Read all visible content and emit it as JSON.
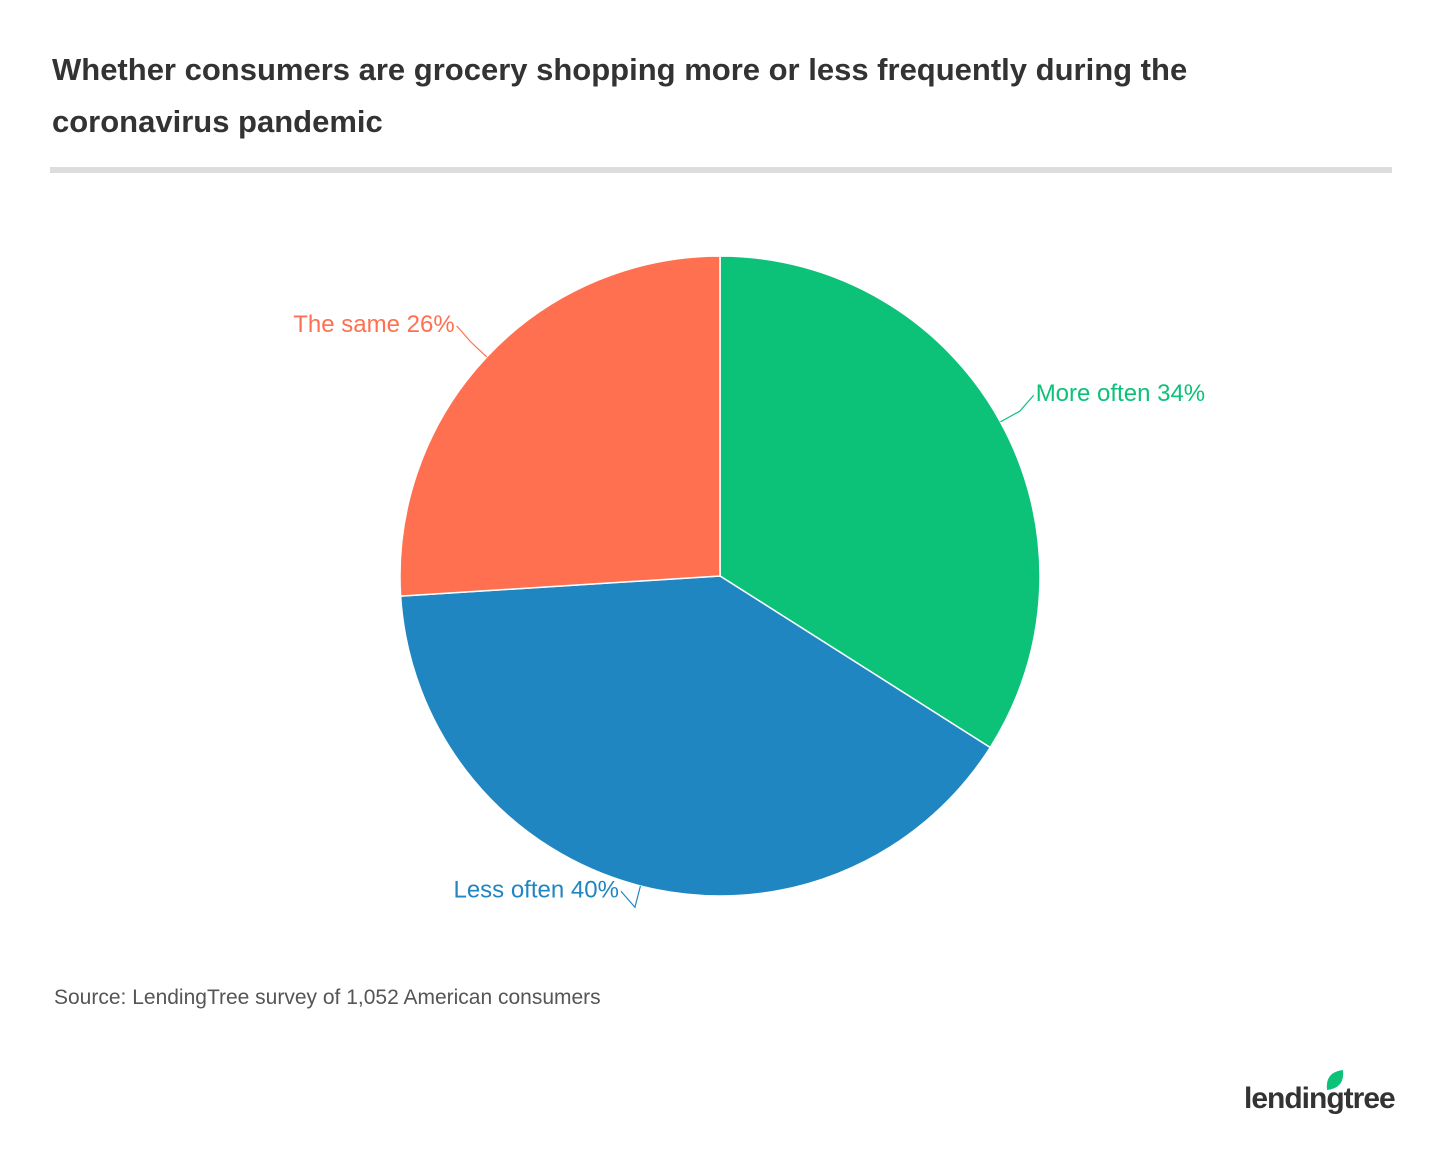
{
  "chart_data": {
    "type": "pie",
    "title": "Whether consumers are grocery shopping more or less frequently during the coronavirus pandemic",
    "categories": [
      "More often",
      "Less often",
      "The same"
    ],
    "values": [
      34,
      40,
      26
    ],
    "value_labels": [
      "34%",
      "40%",
      "26%"
    ],
    "colors": [
      "#0bc278",
      "#2086c1",
      "#ff7050"
    ],
    "source": "Source: LendingTree survey of 1,052 American consumers"
  },
  "logo": "lendingtree"
}
